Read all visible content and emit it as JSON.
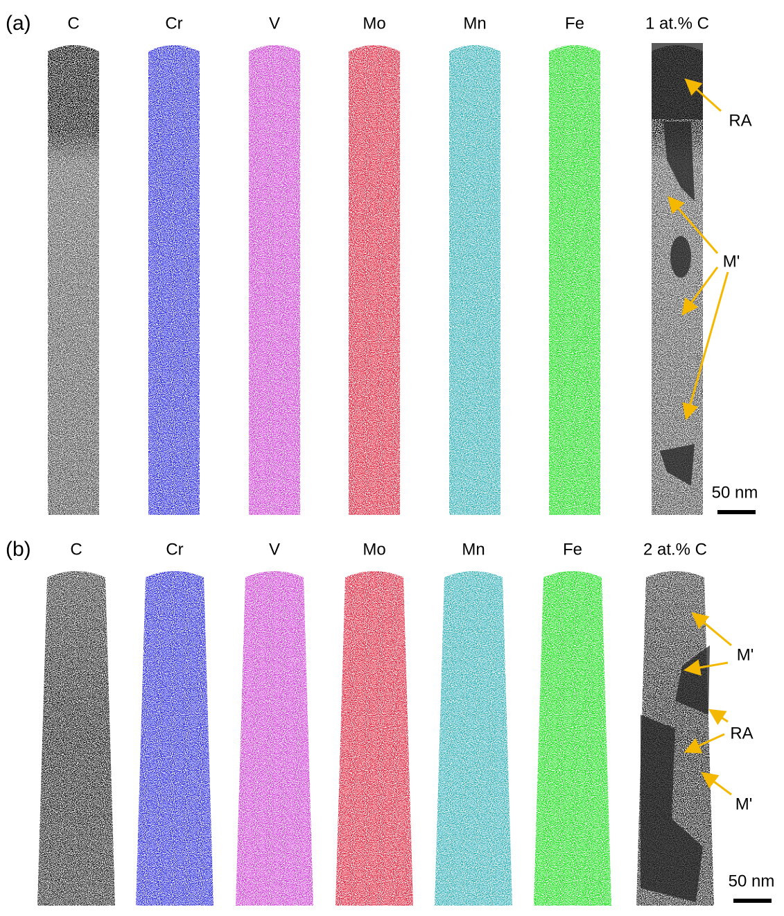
{
  "panels": [
    {
      "label": "(a)",
      "columns": [
        "C",
        "Cr",
        "V",
        "Mo",
        "Mn",
        "Fe",
        "1 at.% C"
      ],
      "annotations": [
        "RA",
        "M'"
      ],
      "scale_bar": "50 nm"
    },
    {
      "label": "(b)",
      "columns": [
        "C",
        "Cr",
        "V",
        "Mo",
        "Mn",
        "Fe",
        "2 at.% C"
      ],
      "annotations": [
        "M'",
        "RA",
        "M'"
      ],
      "scale_bar": "50 nm"
    }
  ]
}
